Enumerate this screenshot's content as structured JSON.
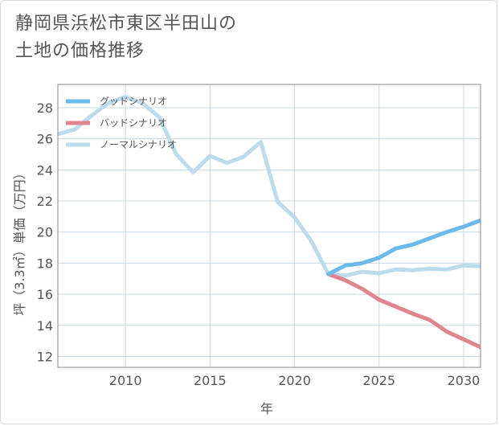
{
  "title_lines": [
    "静岡県浜松市東区半田山の",
    "土地の価格推移"
  ],
  "colors": {
    "good": "#6cb9ec",
    "bad": "#e0858e",
    "normal": "#bcdcec",
    "grid": "#c8d8e0",
    "frame": "#888888"
  },
  "chart_data": {
    "type": "line",
    "title": "静岡県浜松市東区半田山の土地の価格推移",
    "xlabel": "年",
    "ylabel": "坪（3.3㎡）単価（万円）",
    "xlim": [
      2006,
      2031
    ],
    "ylim": [
      11.3,
      29.5
    ],
    "xticks": [
      2010,
      2015,
      2020,
      2025,
      2030
    ],
    "yticks": [
      12,
      14,
      16,
      18,
      20,
      22,
      24,
      26,
      28
    ],
    "grid": true,
    "legend_position": "top-left",
    "series": [
      {
        "key": "good",
        "name": "グッドシナリオ",
        "x": [
          2022,
          2023,
          2024,
          2025,
          2026,
          2027,
          2028,
          2029,
          2030,
          2031
        ],
        "y": [
          17.3,
          17.85,
          18.0,
          18.35,
          18.95,
          19.2,
          19.6,
          20.0,
          20.35,
          20.75
        ]
      },
      {
        "key": "bad",
        "name": "バッドシナリオ",
        "x": [
          2022,
          2023,
          2024,
          2025,
          2026,
          2027,
          2028,
          2029,
          2030,
          2031
        ],
        "y": [
          17.3,
          16.9,
          16.35,
          15.65,
          15.2,
          14.75,
          14.35,
          13.6,
          13.1,
          12.6
        ]
      },
      {
        "key": "normal",
        "name": "ノーマルシナリオ",
        "x": [
          2006,
          2007,
          2008,
          2009,
          2010,
          2011,
          2012,
          2013,
          2014,
          2015,
          2016,
          2017,
          2018,
          2019,
          2020,
          2021,
          2022,
          2023,
          2024,
          2025,
          2026,
          2027,
          2028,
          2029,
          2030,
          2031
        ],
        "y": [
          26.3,
          26.6,
          27.5,
          28.3,
          28.7,
          28.3,
          27.4,
          25.0,
          23.85,
          24.9,
          24.45,
          24.85,
          25.8,
          21.95,
          20.95,
          19.4,
          17.3,
          17.2,
          17.45,
          17.35,
          17.6,
          17.55,
          17.65,
          17.6,
          17.85,
          17.8
        ]
      }
    ]
  }
}
